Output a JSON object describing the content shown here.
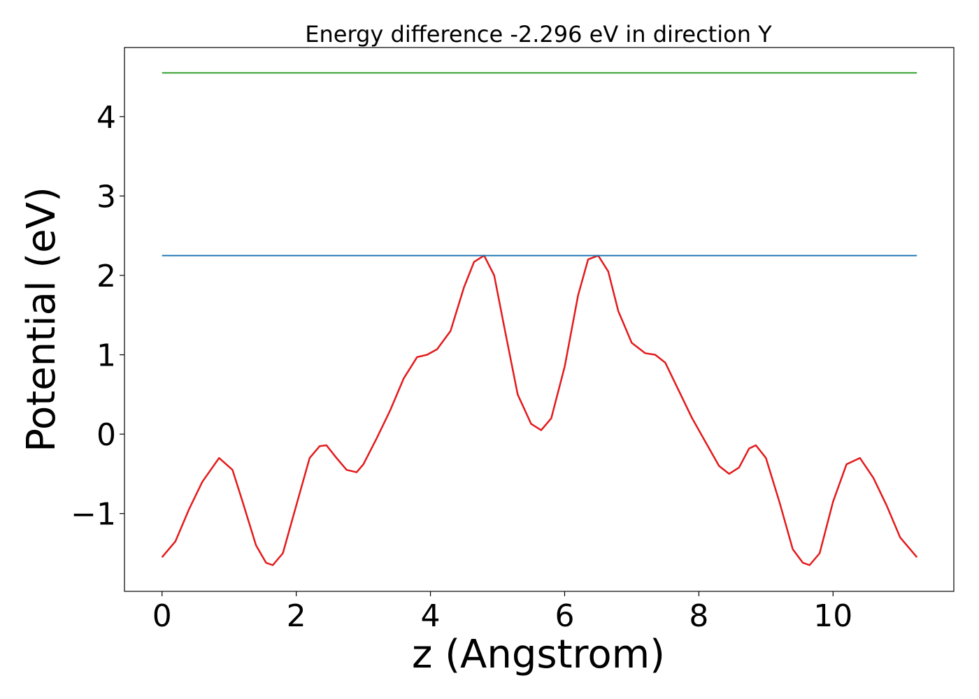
{
  "chart_data": {
    "type": "line",
    "title": "Energy difference -2.296 eV in direction Y",
    "xlabel": "z (Angstrom)",
    "ylabel": "Potential (eV)",
    "xlim": [
      -0.56,
      11.8
    ],
    "ylim": [
      -1.98,
      4.87
    ],
    "xticks": [
      0,
      2,
      4,
      6,
      8,
      10
    ],
    "xtick_labels": [
      "0",
      "2",
      "4",
      "6",
      "8",
      "10"
    ],
    "yticks": [
      -1,
      0,
      1,
      2,
      3,
      4
    ],
    "ytick_labels": [
      "−1",
      "0",
      "1",
      "2",
      "3",
      "4"
    ],
    "grid": false,
    "series": [
      {
        "color": "#e31a1c",
        "x": [
          0,
          0.2,
          0.4,
          0.6,
          0.85,
          1.05,
          1.2,
          1.4,
          1.55,
          1.65,
          1.8,
          2.0,
          2.2,
          2.35,
          2.45,
          2.6,
          2.75,
          2.9,
          3.0,
          3.2,
          3.4,
          3.6,
          3.8,
          3.95,
          4.1,
          4.3,
          4.5,
          4.65,
          4.8,
          4.95,
          5.1,
          5.3,
          5.5,
          5.65,
          5.8,
          6.0,
          6.2,
          6.35,
          6.5,
          6.65,
          6.8,
          7.0,
          7.2,
          7.35,
          7.5,
          7.7,
          7.9,
          8.1,
          8.3,
          8.45,
          8.6,
          8.75,
          8.85,
          9.0,
          9.2,
          9.4,
          9.55,
          9.65,
          9.8,
          10.0,
          10.2,
          10.4,
          10.6,
          10.8,
          11.0,
          11.25
        ],
        "y": [
          -1.55,
          -1.35,
          -0.95,
          -0.6,
          -0.3,
          -0.45,
          -0.85,
          -1.4,
          -1.62,
          -1.65,
          -1.5,
          -0.9,
          -0.3,
          -0.15,
          -0.14,
          -0.3,
          -0.45,
          -0.48,
          -0.38,
          -0.05,
          0.3,
          0.7,
          0.97,
          1.0,
          1.07,
          1.3,
          1.85,
          2.17,
          2.25,
          2.0,
          1.35,
          0.5,
          0.13,
          0.05,
          0.2,
          0.85,
          1.75,
          2.2,
          2.25,
          2.05,
          1.55,
          1.15,
          1.02,
          1.0,
          0.9,
          0.55,
          0.2,
          -0.1,
          -0.4,
          -0.5,
          -0.42,
          -0.18,
          -0.14,
          -0.3,
          -0.85,
          -1.45,
          -1.62,
          -1.65,
          -1.5,
          -0.85,
          -0.38,
          -0.3,
          -0.55,
          -0.9,
          -1.3,
          -1.55
        ]
      },
      {
        "color": "#1f78b4",
        "x": [
          0,
          11.25
        ],
        "y": [
          2.25,
          2.25
        ]
      },
      {
        "color": "#33a02c",
        "x": [
          0,
          11.25
        ],
        "y": [
          4.55,
          4.55
        ]
      }
    ]
  }
}
